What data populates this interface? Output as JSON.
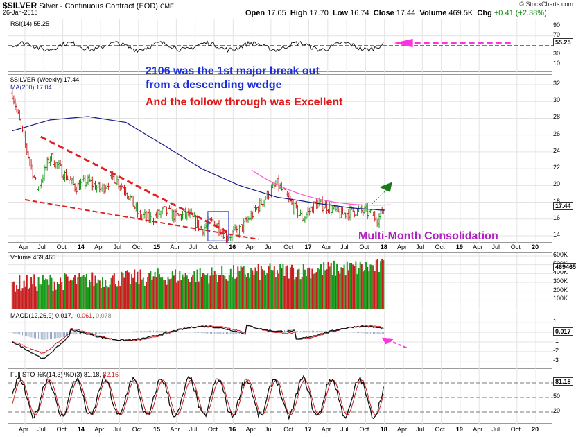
{
  "header": {
    "symbol": "$SILVER",
    "name": "Silver - Continuous Contract (EOD)",
    "exchange": "CME",
    "date": "26-Jan-2018",
    "open_label": "Open",
    "open": "17.05",
    "high_label": "High",
    "high": "17.70",
    "low_label": "Low",
    "low": "16.74",
    "close_label": "Close",
    "close": "17.44",
    "volume_label": "Volume",
    "volume": "469.5K",
    "chg_label": "Chg",
    "chg": "+0.41 (+2.38%)",
    "credit": "© StockCharts.com"
  },
  "colors": {
    "up": "#1a9a1a",
    "down": "#c81e1e",
    "ma": "#1c1c8c",
    "trend": "#e02020",
    "consol": "#ff55cc",
    "arrow_green": "#1a7a1a",
    "arrow_pink": "#ff33dd",
    "note_blue": "#1a2fd6",
    "note_red": "#e01818",
    "note_purple": "#b020c0"
  },
  "rsi": {
    "label": "RSI(14)",
    "value": "55.25",
    "ticks": [
      "90",
      "70",
      "50",
      "30",
      "10"
    ],
    "current": 55.25,
    "ylim": [
      0,
      100
    ],
    "levels": [
      70,
      50,
      30
    ]
  },
  "price": {
    "label": "$SILVER (Weekly)",
    "last": "17.44",
    "ma_label": "MA(200)",
    "ma_value": "17.04",
    "ticks": [
      "32",
      "30",
      "28",
      "26",
      "24",
      "22",
      "20",
      "18",
      "16",
      "14"
    ],
    "ylim": [
      13.2,
      32.8
    ],
    "last_marker": "17.44"
  },
  "volume": {
    "label": "Volume",
    "value": "469,465",
    "ticks": [
      "600K",
      "500K",
      "400K",
      "300K",
      "200K",
      "100K"
    ],
    "marker": "469465",
    "ylim": [
      0,
      600000
    ]
  },
  "macd": {
    "label": "MACD(12,26,9)",
    "v1": "0.017",
    "v2": "-0.061",
    "v3": "0.078",
    "ticks": [
      "1",
      "0",
      "-1",
      "-2",
      "-3"
    ],
    "marker": "0.017",
    "ylim": [
      -3.6,
      1.6
    ]
  },
  "sto": {
    "label": "Full STO %K(14,3) %D(3)",
    "k": "81.18",
    "d": "82.16",
    "ticks": [
      "80",
      "50",
      "20"
    ],
    "marker": "81.18",
    "ylim": [
      0,
      100
    ],
    "levels": [
      80,
      50,
      20
    ]
  },
  "x_labels": [
    "Apr",
    "Jul",
    "Oct",
    "14",
    "Apr",
    "Jul",
    "Oct",
    "15",
    "Apr",
    "Jul",
    "Oct",
    "16",
    "Apr",
    "Jul",
    "Oct",
    "17",
    "Apr",
    "Jul",
    "Oct",
    "18",
    "Apr",
    "Jul",
    "Oct",
    "19",
    "Apr",
    "Jul",
    "Oct",
    "20"
  ],
  "annotations": {
    "line1": "2106 was the 1st major break out",
    "line2": "from a descending wedge",
    "line3": "And the follow through was Excellent",
    "consolidation": "Multi-Month Consolidation"
  },
  "chart_data": {
    "type": "line",
    "title": "Silver - Continuous Contract (EOD)",
    "x_range": [
      "Feb 2013",
      "Jan 2018"
    ],
    "series": [
      {
        "name": "$SILVER (Weekly)",
        "x": [
          "2013-02",
          "2013-04",
          "2013-06",
          "2013-08",
          "2013-10",
          "2013-12",
          "2014-02",
          "2014-04",
          "2014-06",
          "2014-08",
          "2014-10",
          "2014-12",
          "2015-02",
          "2015-04",
          "2015-06",
          "2015-08",
          "2015-10",
          "2015-12",
          "2016-02",
          "2016-04",
          "2016-06",
          "2016-08",
          "2016-10",
          "2016-12",
          "2017-02",
          "2017-04",
          "2017-06",
          "2017-08",
          "2017-10",
          "2017-12",
          "2018-01"
        ],
        "values": [
          31.0,
          25.0,
          19.5,
          23.5,
          21.5,
          19.8,
          20.5,
          19.5,
          21.0,
          19.5,
          16.5,
          16.0,
          17.0,
          16.3,
          16.5,
          14.8,
          15.8,
          13.9,
          14.7,
          16.5,
          18.5,
          20.2,
          18.0,
          16.0,
          17.8,
          17.5,
          16.5,
          17.0,
          16.9,
          16.0,
          17.44
        ]
      },
      {
        "name": "MA(200)",
        "x": [
          "2013-02",
          "2013-08",
          "2014-02",
          "2014-08",
          "2015-02",
          "2015-08",
          "2016-02",
          "2016-08",
          "2017-02",
          "2017-08",
          "2018-01"
        ],
        "values": [
          26.5,
          27.8,
          28.2,
          27.5,
          24.8,
          22.0,
          20.0,
          18.6,
          17.9,
          17.3,
          17.04
        ]
      }
    ],
    "ylim": [
      13.2,
      32.8
    ]
  }
}
